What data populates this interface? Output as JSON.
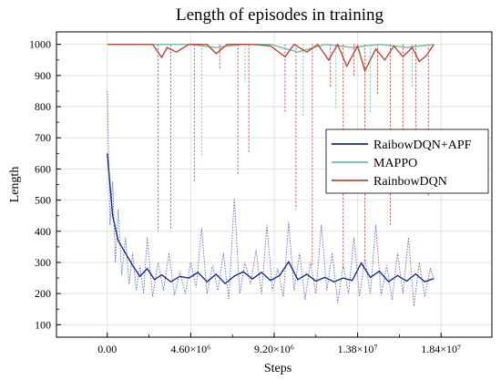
{
  "chart_data": {
    "type": "line",
    "title": "Length of episodes in training",
    "xlabel": "Steps",
    "ylabel": "Length",
    "xlim": [
      -2800000,
      21200000
    ],
    "ylim": [
      60,
      1040
    ],
    "xticks": [
      0,
      4600000,
      9200000,
      13800000,
      18400000
    ],
    "xtick_labels": [
      "0.00",
      "4.60×10⁶",
      "9.20×10⁶",
      "1.38×10⁷",
      "1.84×10⁷"
    ],
    "yticks": [
      100,
      200,
      300,
      400,
      500,
      600,
      700,
      800,
      900,
      1000
    ],
    "grid": true,
    "legend_position": "center-right",
    "series": [
      {
        "name": "RaibowDQN+APF",
        "color": "#1a2a8c",
        "raw_color": "#3a4fc0",
        "smoothed": {
          "x": [
            0,
            300000,
            600000,
            1000000,
            1400000,
            1800000,
            2200000,
            2600000,
            3000000,
            3500000,
            4000000,
            4500000,
            5000000,
            5500000,
            6000000,
            6500000,
            7000000,
            7500000,
            8000000,
            8500000,
            9000000,
            9500000,
            10000000,
            10500000,
            11000000,
            11500000,
            12000000,
            12500000,
            13000000,
            13500000,
            14000000,
            14500000,
            15000000,
            15500000,
            16000000,
            16500000,
            17000000,
            17500000,
            18000000
          ],
          "y": [
            650,
            450,
            370,
            330,
            290,
            255,
            280,
            245,
            260,
            238,
            255,
            250,
            268,
            238,
            262,
            232,
            256,
            270,
            247,
            268,
            242,
            258,
            302,
            245,
            262,
            240,
            252,
            238,
            250,
            242,
            298,
            252,
            272,
            238,
            258,
            240,
            263,
            238,
            248
          ]
        },
        "raw": {
          "x": [
            0,
            150000,
            300000,
            450000,
            600000,
            800000,
            1000000,
            1200000,
            1400000,
            1600000,
            1800000,
            2000000,
            2200000,
            2500000,
            2800000,
            3100000,
            3400000,
            3700000,
            4000000,
            4300000,
            4600000,
            4900000,
            5200000,
            5500000,
            5800000,
            6100000,
            6400000,
            6700000,
            7000000,
            7300000,
            7600000,
            7900000,
            8200000,
            8500000,
            8800000,
            9100000,
            9400000,
            9700000,
            10000000,
            10300000,
            10600000,
            10900000,
            11200000,
            11500000,
            11800000,
            12100000,
            12400000,
            12700000,
            13000000,
            13300000,
            13600000,
            13900000,
            14200000,
            14500000,
            14800000,
            15100000,
            15400000,
            15700000,
            16000000,
            16300000,
            16600000,
            16900000,
            17200000,
            17500000,
            17800000,
            18000000
          ],
          "y": [
            850,
            420,
            560,
            300,
            470,
            260,
            380,
            230,
            330,
            210,
            290,
            200,
            380,
            190,
            300,
            210,
            330,
            195,
            270,
            200,
            300,
            220,
            410,
            200,
            290,
            210,
            330,
            180,
            505,
            200,
            300,
            230,
            340,
            200,
            420,
            210,
            280,
            190,
            430,
            210,
            330,
            180,
            300,
            200,
            420,
            210,
            330,
            170,
            290,
            200,
            380,
            190,
            310,
            200,
            420,
            195,
            290,
            180,
            330,
            200,
            380,
            160,
            300,
            190,
            280,
            250
          ]
        }
      },
      {
        "name": "MAPPO",
        "color": "#6cc0a0",
        "smoothed": {
          "x": [
            0,
            1500000,
            3000000,
            4500000,
            6000000,
            7500000,
            9000000,
            10500000,
            12000000,
            13500000,
            15000000,
            16500000,
            18000000
          ],
          "y": [
            1000,
            1000,
            1000,
            1000,
            990,
            1000,
            1000,
            975,
            1000,
            990,
            1000,
            990,
            1000
          ]
        },
        "drops": [
          {
            "x": 5200000,
            "y": 640
          },
          {
            "x": 7600000,
            "y": 880
          },
          {
            "x": 10800000,
            "y": 770
          },
          {
            "x": 12600000,
            "y": 790
          },
          {
            "x": 14500000,
            "y": 780
          },
          {
            "x": 16800000,
            "y": 860
          }
        ]
      },
      {
        "name": "RainbowDQN",
        "color": "#b84a3c",
        "raw_color": "#d0463a",
        "smoothed": {
          "x": [
            0,
            1500000,
            2500000,
            3000000,
            3300000,
            3800000,
            4500000,
            5500000,
            6000000,
            6600000,
            7000000,
            8000000,
            9000000,
            9800000,
            10300000,
            11000000,
            11600000,
            12200000,
            12700000,
            13200000,
            13800000,
            14200000,
            14800000,
            15300000,
            15800000,
            16300000,
            16800000,
            17200000,
            17600000,
            18000000
          ],
          "y": [
            1000,
            1000,
            1000,
            958,
            990,
            975,
            1000,
            1000,
            970,
            1000,
            1000,
            1000,
            995,
            960,
            1000,
            975,
            1000,
            950,
            1000,
            930,
            995,
            915,
            985,
            950,
            995,
            960,
            990,
            945,
            965,
            1000
          ]
        },
        "drops": [
          {
            "x": 2800000,
            "y": 400
          },
          {
            "x": 3500000,
            "y": 410
          },
          {
            "x": 4800000,
            "y": 560
          },
          {
            "x": 6200000,
            "y": 920
          },
          {
            "x": 7200000,
            "y": 580
          },
          {
            "x": 7800000,
            "y": 650
          },
          {
            "x": 9800000,
            "y": 780
          },
          {
            "x": 10400000,
            "y": 470
          },
          {
            "x": 11300000,
            "y": 290
          },
          {
            "x": 12300000,
            "y": 860
          },
          {
            "x": 13000000,
            "y": 280
          },
          {
            "x": 13600000,
            "y": 900
          },
          {
            "x": 14200000,
            "y": 300
          },
          {
            "x": 14900000,
            "y": 840
          },
          {
            "x": 15600000,
            "y": 420
          },
          {
            "x": 16300000,
            "y": 720
          },
          {
            "x": 17000000,
            "y": 590
          },
          {
            "x": 17700000,
            "y": 510
          }
        ]
      }
    ]
  }
}
